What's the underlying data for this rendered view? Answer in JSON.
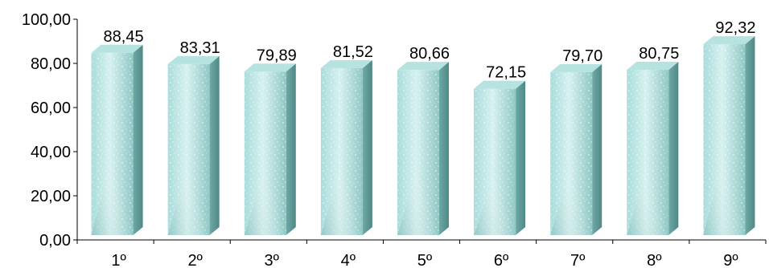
{
  "chart_data": {
    "type": "bar",
    "title": "",
    "xlabel": "",
    "ylabel": "",
    "categories": [
      "1º",
      "2º",
      "3º",
      "4º",
      "5º",
      "6º",
      "7º",
      "8º",
      "9º"
    ],
    "values": [
      88.45,
      83.31,
      79.89,
      81.52,
      80.66,
      72.15,
      79.7,
      80.75,
      92.32
    ],
    "data_labels": [
      "88,45",
      "83,31",
      "79,89",
      "81,52",
      "80,66",
      "72,15",
      "79,70",
      "80,75",
      "92,32"
    ],
    "ylim": [
      0,
      100
    ],
    "yticks": [
      0,
      20,
      40,
      60,
      80,
      100
    ],
    "ytick_labels": [
      "0,00",
      "20,00",
      "40,00",
      "60,00",
      "80,00",
      "100,00"
    ],
    "grid": false,
    "legend": "none",
    "style": "3d-textured-columns",
    "colors": {
      "bar_front": "#8ec9c6",
      "bar_front_light": "#d9f3f2",
      "bar_side": "#5f9a98",
      "bar_top": "#b6e2e0",
      "axis": "#000000"
    }
  }
}
